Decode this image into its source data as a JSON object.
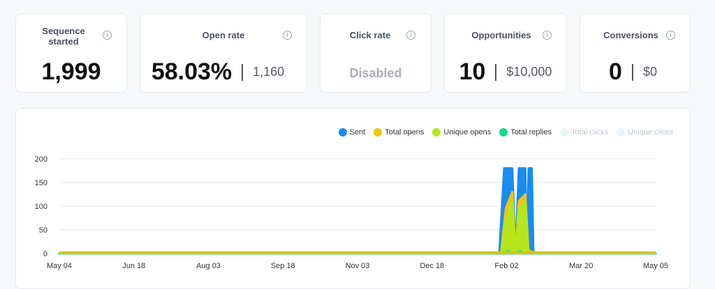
{
  "stats": {
    "sequence": {
      "title_line1": "Sequence",
      "title_line2": "started",
      "value": "1,999"
    },
    "open_rate": {
      "title": "Open rate",
      "value": "58.03%",
      "sub": "1,160"
    },
    "click_rate": {
      "title": "Click rate",
      "value": "Disabled"
    },
    "opportunities": {
      "title": "Opportunities",
      "value": "10",
      "sub": "$10,000"
    },
    "conversions": {
      "title": "Conversions",
      "value": "0",
      "sub": "$0"
    }
  },
  "legend": [
    {
      "label": "Sent",
      "color": "#1a8cf0"
    },
    {
      "label": "Total opens",
      "color": "#f2c40f"
    },
    {
      "label": "Unique opens",
      "color": "#b6e61a"
    },
    {
      "label": "Total replies",
      "color": "#1ad68c"
    },
    {
      "label": "Total clicks",
      "color": "#e7f7f3"
    },
    {
      "label": "Unique clicks",
      "color": "#e7f6f8"
    }
  ],
  "chart_data": {
    "type": "area",
    "x_ticks": [
      "May 04",
      "Jun 18",
      "Aug 03",
      "Sep 18",
      "Nov 03",
      "Dec 18",
      "Feb 02",
      "Mar 20",
      "May 05"
    ],
    "y_ticks": [
      "0",
      "50",
      "100",
      "150",
      "200"
    ],
    "ylim": [
      0,
      200
    ],
    "series": [
      {
        "name": "Sent",
        "color": "#1a8cf0",
        "points": [
          [
            "May 04",
            0
          ],
          [
            "Jan 29",
            0
          ],
          [
            "Feb 01",
            180
          ],
          [
            "Feb 06",
            180
          ],
          [
            "Feb 08",
            0
          ],
          [
            "Feb 10",
            180
          ],
          [
            "Feb 14",
            180
          ],
          [
            "Feb 15",
            0
          ],
          [
            "Feb 16",
            180
          ],
          [
            "Feb 18",
            180
          ],
          [
            "Feb 19",
            0
          ],
          [
            "May 05",
            0
          ]
        ]
      },
      {
        "name": "Total opens",
        "color": "#f2c40f",
        "points": [
          [
            "May 04",
            0
          ],
          [
            "Jan 30",
            0
          ],
          [
            "Feb 02",
            95
          ],
          [
            "Feb 06",
            130
          ],
          [
            "Feb 08",
            0
          ],
          [
            "Feb 10",
            110
          ],
          [
            "Feb 14",
            125
          ],
          [
            "Feb 16",
            5
          ],
          [
            "Feb 18",
            5
          ],
          [
            "Feb 19",
            0
          ],
          [
            "May 05",
            0
          ]
        ]
      },
      {
        "name": "Unique opens",
        "color": "#b6e61a",
        "points": [
          [
            "May 04",
            0
          ],
          [
            "Jan 30",
            0
          ],
          [
            "Feb 02",
            70
          ],
          [
            "Feb 06",
            110
          ],
          [
            "Feb 08",
            0
          ],
          [
            "Feb 10",
            90
          ],
          [
            "Feb 14",
            110
          ],
          [
            "Feb 16",
            0
          ],
          [
            "May 05",
            0
          ]
        ]
      },
      {
        "name": "Total replies",
        "color": "#1ad68c",
        "points": [
          [
            "May 04",
            0
          ],
          [
            "Feb 02",
            0
          ],
          [
            "Feb 03",
            5
          ],
          [
            "Feb 05",
            3
          ],
          [
            "Feb 06",
            0
          ],
          [
            "Feb 11",
            5
          ],
          [
            "Feb 13",
            0
          ],
          [
            "May 05",
            0
          ]
        ]
      }
    ]
  }
}
